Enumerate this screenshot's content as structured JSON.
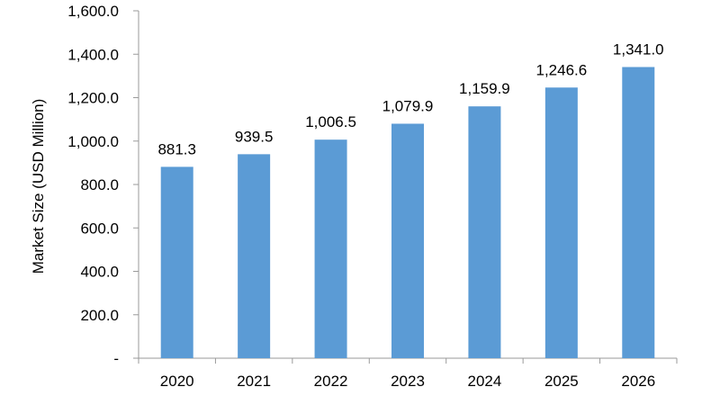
{
  "chart_data": {
    "type": "bar",
    "title": "",
    "xlabel": "",
    "ylabel": "Market Size (USD Million)",
    "categories": [
      "2020",
      "2021",
      "2022",
      "2023",
      "2024",
      "2025",
      "2026"
    ],
    "values": [
      881.3,
      939.5,
      1006.5,
      1079.9,
      1159.9,
      1246.6,
      1341.0
    ],
    "value_labels": [
      "881.3",
      "939.5",
      "1,006.5",
      "1,079.9",
      "1,159.9",
      "1,246.6",
      "1,341.0"
    ],
    "ylim": [
      0,
      1600
    ],
    "yticks": [
      0,
      200,
      400,
      600,
      800,
      1000,
      1200,
      1400,
      1600
    ],
    "ytick_labels": [
      "-",
      "200.0",
      "400.0",
      "600.0",
      "800.0",
      "1,000.0",
      "1,200.0",
      "1,400.0",
      "1,600.0"
    ],
    "grid": false,
    "legend": "none",
    "bar_color": "#5B9BD5"
  }
}
